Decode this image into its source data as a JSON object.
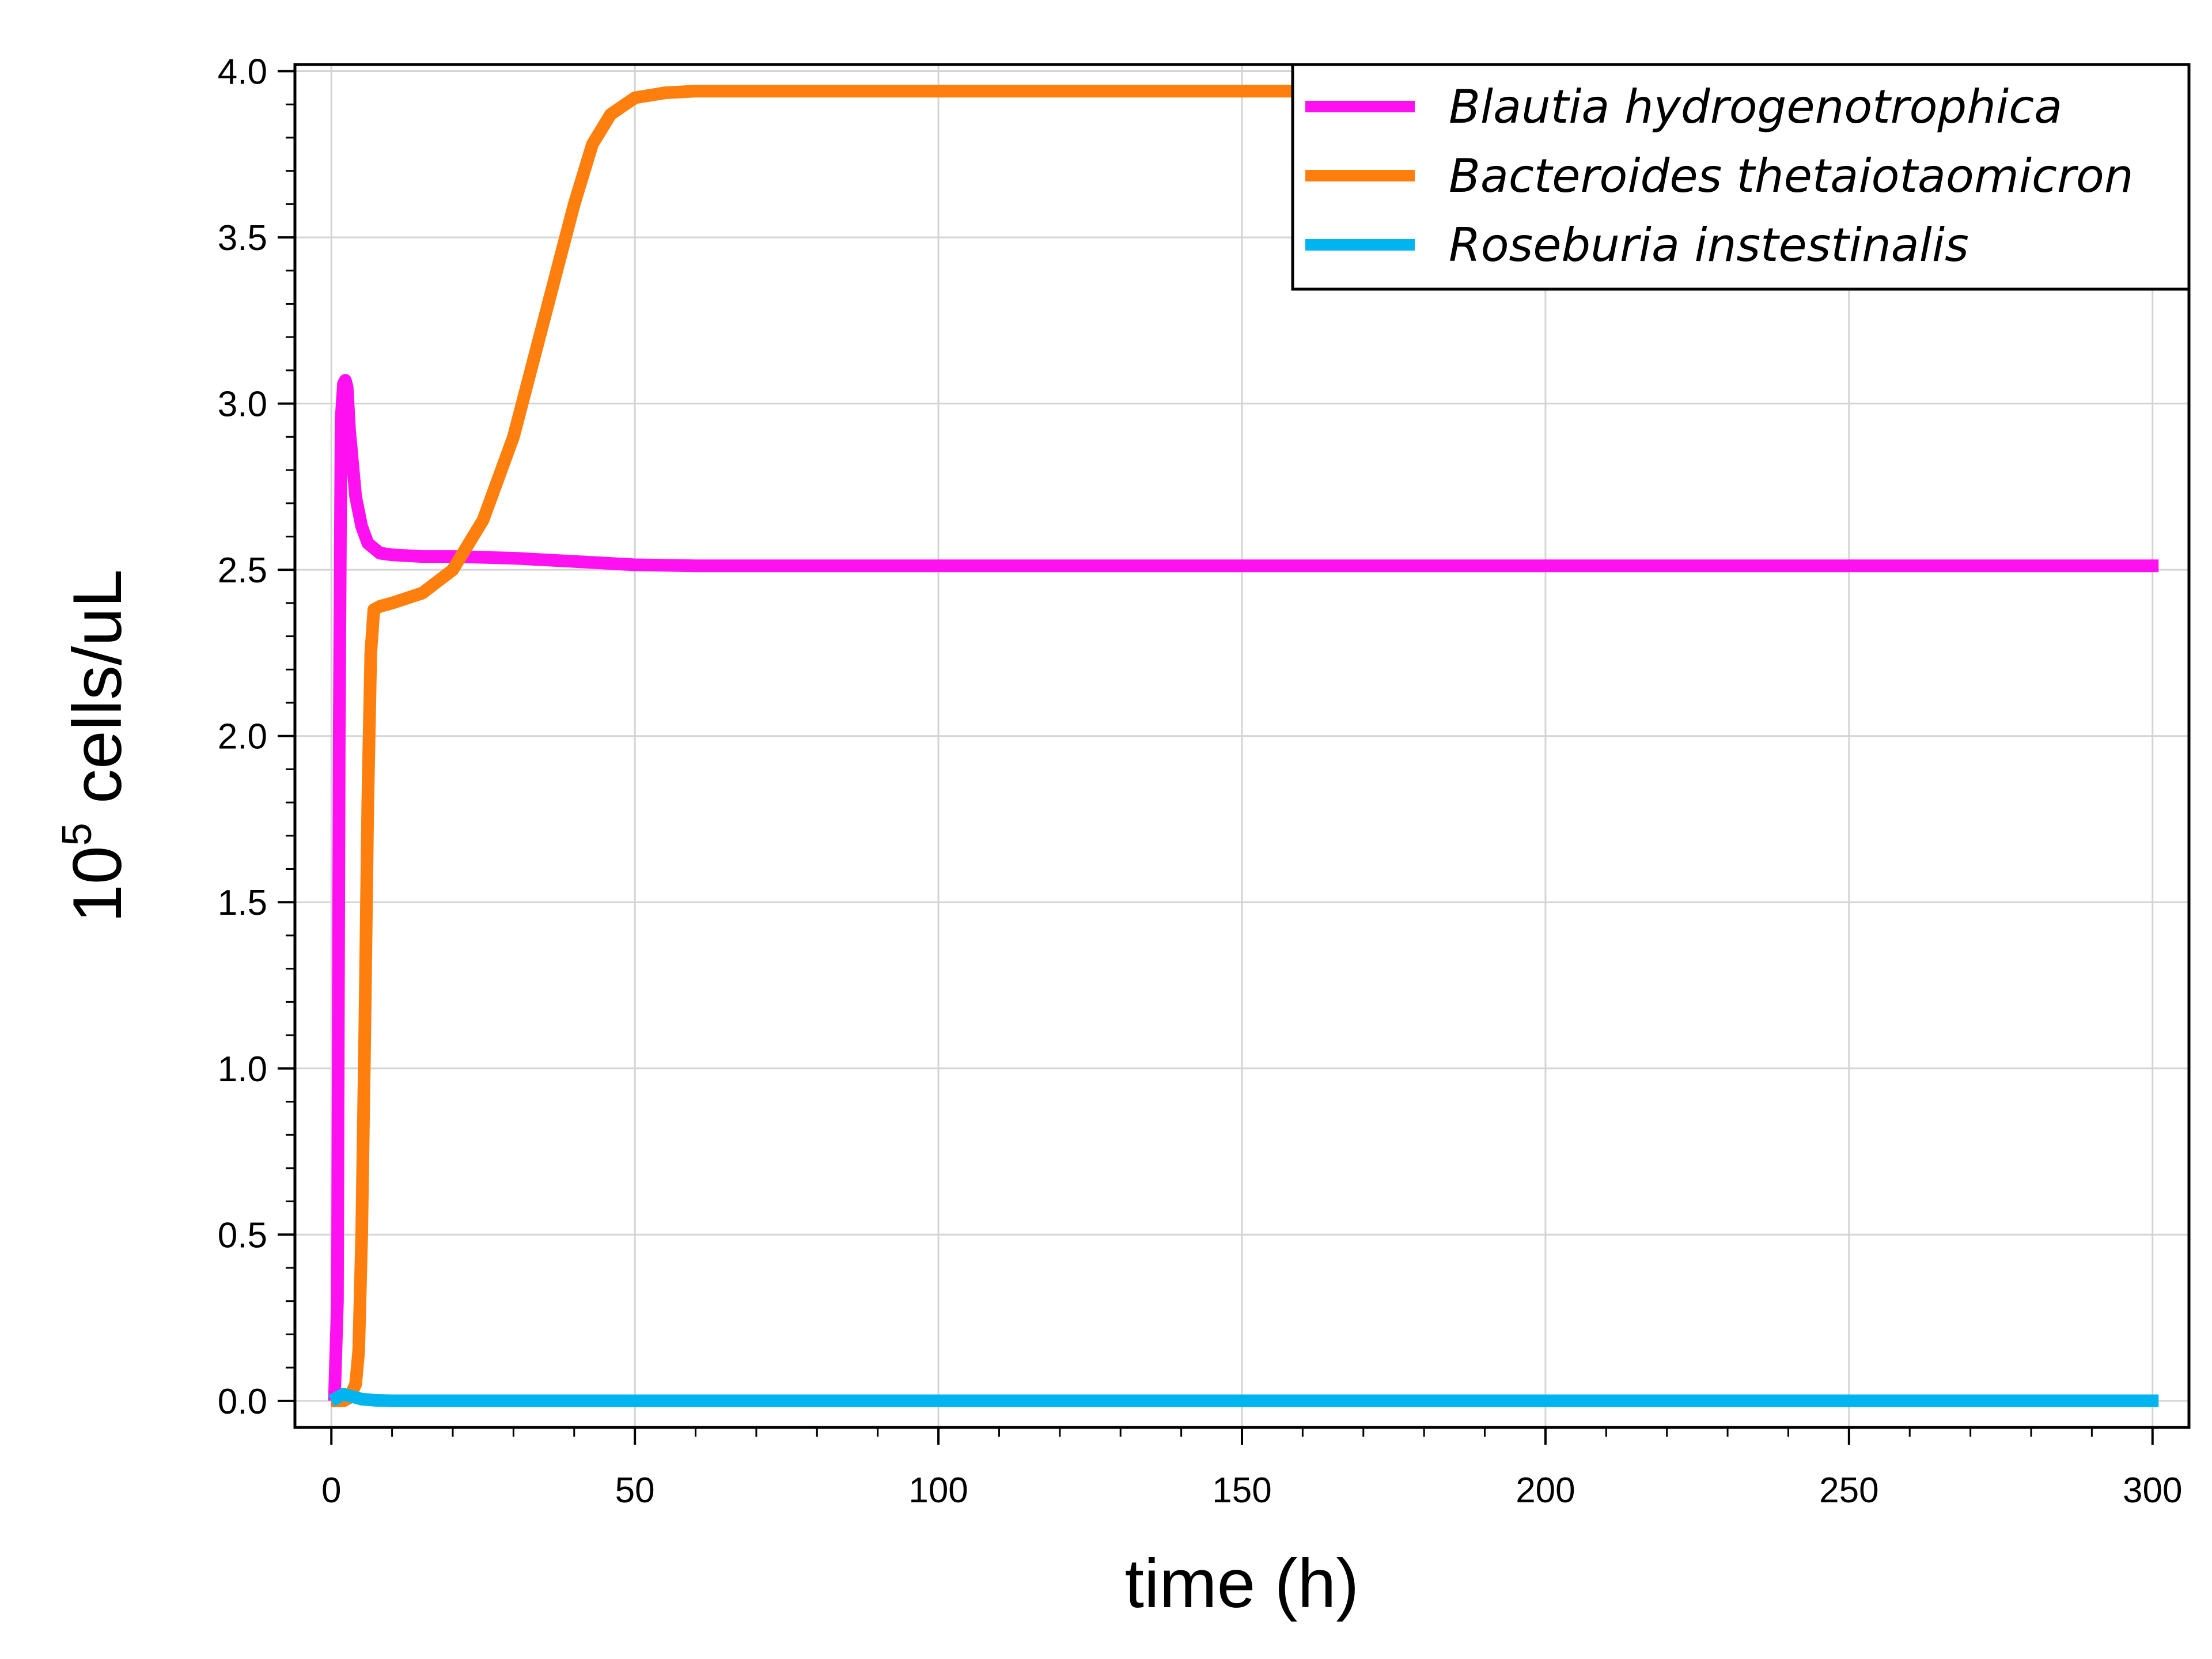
{
  "chart_data": {
    "type": "line",
    "title": "",
    "xlabel": "time (h)",
    "ylabel": {
      "base": "10",
      "exponent": "5",
      "unit": " cells/uL"
    },
    "xlim": [
      -6,
      306
    ],
    "ylim": [
      -0.08,
      4.02
    ],
    "x_ticks": [
      {
        "value": 0,
        "label": "0"
      },
      {
        "value": 50,
        "label": "50"
      },
      {
        "value": 100,
        "label": "100"
      },
      {
        "value": 150,
        "label": "150"
      },
      {
        "value": 200,
        "label": "200"
      },
      {
        "value": 250,
        "label": "250"
      },
      {
        "value": 300,
        "label": "300"
      }
    ],
    "y_ticks": [
      {
        "value": 0.0,
        "label": "0.0"
      },
      {
        "value": 0.5,
        "label": "0.5"
      },
      {
        "value": 1.0,
        "label": "1.0"
      },
      {
        "value": 1.5,
        "label": "1.5"
      },
      {
        "value": 2.0,
        "label": "2.0"
      },
      {
        "value": 2.5,
        "label": "2.5"
      },
      {
        "value": 3.0,
        "label": "3.0"
      },
      {
        "value": 3.5,
        "label": "3.5"
      },
      {
        "value": 4.0,
        "label": "4.0"
      }
    ],
    "grid": true,
    "legend_position": "top-right",
    "series": [
      {
        "name": "Blautia hydrogenotrophica",
        "color": "#ff10f0",
        "x": [
          0,
          0.5,
          1,
          1.3,
          1.6,
          2,
          2.3,
          2.6,
          3,
          4,
          5,
          6,
          8,
          10,
          15,
          20,
          30,
          40,
          50,
          60,
          100,
          150,
          200,
          250,
          301
        ],
        "y": [
          0.0,
          0.0,
          0.3,
          2.0,
          2.95,
          3.06,
          3.07,
          3.05,
          2.92,
          2.72,
          2.63,
          2.58,
          2.55,
          2.545,
          2.54,
          2.54,
          2.535,
          2.525,
          2.515,
          2.512,
          2.512,
          2.512,
          2.512,
          2.512,
          2.512
        ]
      },
      {
        "name": "Bacteroides thetaiotaomicron",
        "color": "#ff7f0e",
        "x": [
          0,
          2,
          3,
          4,
          4.5,
          5,
          5.5,
          6,
          6.5,
          7,
          8,
          10,
          15,
          20,
          25,
          30,
          35,
          40,
          43,
          46,
          50,
          55,
          60,
          80,
          100,
          150,
          200,
          250,
          301
        ],
        "y": [
          0.0,
          0.0,
          0.01,
          0.05,
          0.15,
          0.5,
          1.1,
          1.8,
          2.25,
          2.38,
          2.39,
          2.4,
          2.43,
          2.5,
          2.65,
          2.9,
          3.25,
          3.6,
          3.78,
          3.87,
          3.92,
          3.935,
          3.94,
          3.94,
          3.94,
          3.94,
          3.94,
          3.94,
          3.94
        ]
      },
      {
        "name": "Roseburia instestinalis",
        "color": "#00b4f0",
        "x": [
          0,
          1,
          2,
          3,
          4,
          5,
          7,
          10,
          20,
          50,
          100,
          150,
          200,
          250,
          301
        ],
        "y": [
          0.0,
          0.01,
          0.02,
          0.015,
          0.01,
          0.005,
          0.002,
          0.0,
          0.0,
          0.0,
          0.0,
          0.0,
          0.0,
          0.0,
          0.0
        ]
      }
    ]
  }
}
